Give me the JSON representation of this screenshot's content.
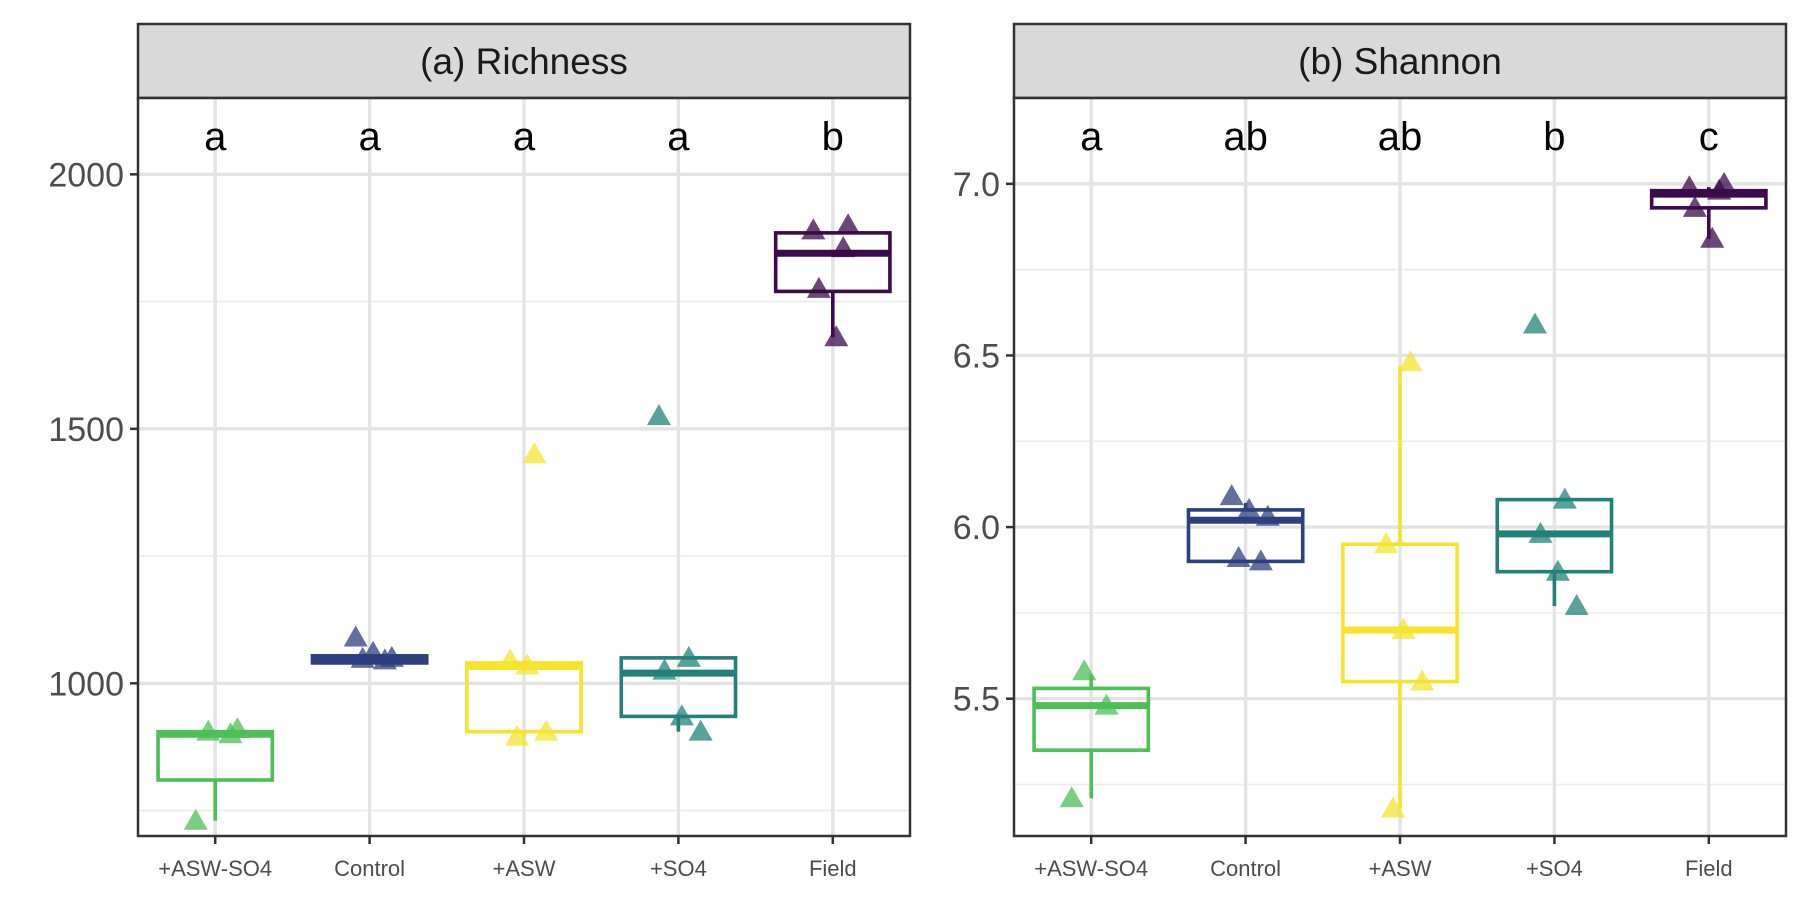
{
  "chart_data": [
    {
      "type": "box",
      "title": "(a) Richness",
      "xlabel": "",
      "ylabel": "",
      "categories": [
        "+ASW-SO4",
        "Control",
        "+ASW",
        "+SO4",
        "Field"
      ],
      "colors": [
        "#4CBF55",
        "#2E3F7F",
        "#F5E32C",
        "#21817A",
        "#3C0A4D"
      ],
      "ylim": [
        700,
        2150
      ],
      "yticks": [
        "1000",
        "1500",
        "2000"
      ],
      "grid": true,
      "groups": [
        {
          "name": "+ASW-SO4",
          "q1": 810,
          "median": 900,
          "q3": 905,
          "whisker_low": 730,
          "whisker_high": 905,
          "points": [
            730,
            900,
            905,
            910
          ]
        },
        {
          "name": "Control",
          "q1": 1040,
          "median": 1047,
          "q3": 1054,
          "whisker_low": 1040,
          "whisker_high": 1054,
          "points": [
            1045,
            1048,
            1050,
            1060,
            1090
          ]
        },
        {
          "name": "+ASW",
          "q1": 905,
          "median": 1033,
          "q3": 1040,
          "whisker_low": 895,
          "whisker_high": 1045,
          "points": [
            895,
            905,
            1035,
            1045,
            1450
          ]
        },
        {
          "name": "+SO4",
          "q1": 935,
          "median": 1020,
          "q3": 1050,
          "whisker_low": 905,
          "whisker_high": 1050,
          "points": [
            905,
            935,
            1025,
            1050,
            1525
          ]
        },
        {
          "name": "Field",
          "q1": 1770,
          "median": 1845,
          "q3": 1885,
          "whisker_low": 1680,
          "whisker_high": 1885,
          "points": [
            1680,
            1775,
            1855,
            1890,
            1900
          ]
        }
      ],
      "letters": [
        "a",
        "a",
        "a",
        "a",
        "b"
      ]
    },
    {
      "type": "box",
      "title": "(b) Shannon",
      "xlabel": "",
      "ylabel": "",
      "categories": [
        "+ASW-SO4",
        "Control",
        "+ASW",
        "+SO4",
        "Field"
      ],
      "colors": [
        "#4CBF55",
        "#2E3F7F",
        "#F5E32C",
        "#21817A",
        "#3C0A4D"
      ],
      "ylim": [
        5.1,
        7.25
      ],
      "yticks": [
        "5.5",
        "6.0",
        "6.5",
        "7.0"
      ],
      "grid": true,
      "groups": [
        {
          "name": "+ASW-SO4",
          "q1": 5.35,
          "median": 5.48,
          "q3": 5.53,
          "whisker_low": 5.21,
          "whisker_high": 5.57,
          "points": [
            5.21,
            5.48,
            5.58
          ]
        },
        {
          "name": "Control",
          "q1": 5.9,
          "median": 6.02,
          "q3": 6.05,
          "whisker_low": 5.9,
          "whisker_high": 6.07,
          "points": [
            5.9,
            5.91,
            6.03,
            6.05,
            6.09
          ]
        },
        {
          "name": "+ASW",
          "q1": 5.55,
          "median": 5.7,
          "q3": 5.95,
          "whisker_low": 5.18,
          "whisker_high": 6.47,
          "points": [
            5.18,
            5.55,
            5.7,
            5.95,
            6.48
          ]
        },
        {
          "name": "+SO4",
          "q1": 5.87,
          "median": 5.98,
          "q3": 6.08,
          "whisker_low": 5.77,
          "whisker_high": 6.08,
          "points": [
            5.77,
            5.87,
            5.98,
            6.08,
            6.59
          ]
        },
        {
          "name": "Field",
          "q1": 6.93,
          "median": 6.97,
          "q3": 6.98,
          "whisker_low": 6.84,
          "whisker_high": 6.99,
          "points": [
            6.84,
            6.93,
            6.98,
            6.99,
            7.0
          ]
        }
      ],
      "letters": [
        "a",
        "ab",
        "ab",
        "b",
        "c"
      ]
    }
  ]
}
